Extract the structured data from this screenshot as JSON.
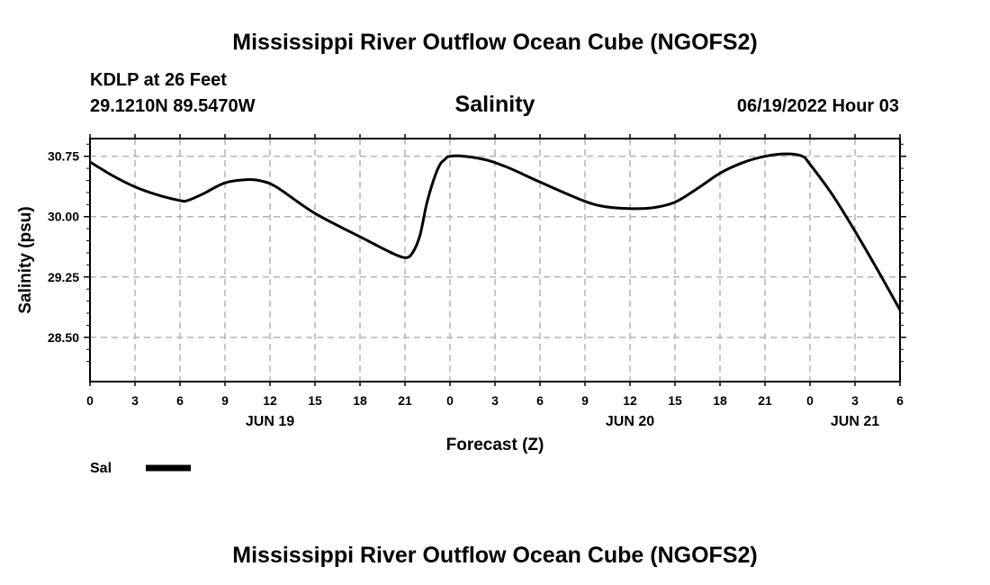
{
  "header": {
    "title": "Mississippi River Outflow Ocean Cube (NGOFS2)",
    "station": "KDLP at 26 Feet",
    "coords": "29.1210N  89.5470W",
    "datetime": "06/19/2022 Hour 03",
    "footer_title": "Mississippi River Outflow Ocean Cube (NGOFS2)"
  },
  "chart_data": {
    "type": "line",
    "title": "Salinity",
    "xlabel": "Forecast (Z)",
    "ylabel": "Salinity (psu)",
    "xlim": [
      0,
      54
    ],
    "ylim": [
      27.95,
      30.97
    ],
    "y_ticks": [
      "30.75",
      "30.00",
      "29.25",
      "28.50"
    ],
    "y_tick_values": [
      30.75,
      30.0,
      29.25,
      28.5
    ],
    "x_ticks": [
      "0",
      "3",
      "6",
      "9",
      "12",
      "15",
      "18",
      "21",
      "0",
      "3",
      "6",
      "9",
      "12",
      "15",
      "18",
      "21",
      "0",
      "3",
      "6"
    ],
    "x_tick_values": [
      0,
      3,
      6,
      9,
      12,
      15,
      18,
      21,
      24,
      27,
      30,
      33,
      36,
      39,
      42,
      45,
      48,
      51,
      54
    ],
    "day_labels": [
      {
        "label": "JUN 19",
        "x": 12
      },
      {
        "label": "JUN 20",
        "x": 36
      },
      {
        "label": "JUN 21",
        "x": 51
      }
    ],
    "grid": true,
    "legend": [
      {
        "name": "Sal",
        "color": "#000000"
      }
    ],
    "series": [
      {
        "name": "Sal",
        "color": "#000000",
        "x": [
          0,
          1.5,
          3,
          4.5,
          6,
          6.5,
          7.5,
          9,
          10.5,
          11.5,
          12.5,
          15,
          18,
          20,
          21,
          21.5,
          22,
          22.5,
          23.2,
          23.7,
          24,
          25,
          26.5,
          28,
          30,
          33,
          34.5,
          36,
          37.5,
          39,
          40.5,
          42,
          43.5,
          45,
          46.5,
          47.5,
          48,
          49.5,
          51,
          52.5,
          54
        ],
        "values": [
          30.68,
          30.51,
          30.37,
          30.27,
          30.2,
          30.2,
          30.28,
          30.42,
          30.46,
          30.44,
          30.36,
          30.04,
          29.75,
          29.56,
          29.49,
          29.55,
          29.77,
          30.2,
          30.6,
          30.72,
          30.75,
          30.75,
          30.7,
          30.6,
          30.43,
          30.19,
          30.12,
          30.1,
          30.11,
          30.18,
          30.35,
          30.54,
          30.67,
          30.75,
          30.78,
          30.75,
          30.65,
          30.27,
          29.82,
          29.34,
          28.84
        ]
      }
    ]
  }
}
